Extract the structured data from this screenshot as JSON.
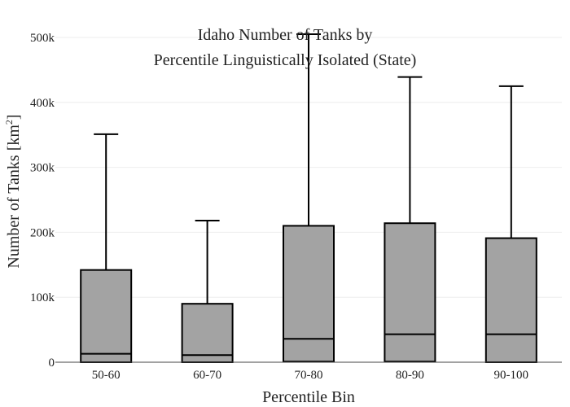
{
  "chart_data": {
    "type": "box",
    "title_lines": [
      "Idaho Number of Tanks by",
      "Percentile Linguistically Isolated (State)"
    ],
    "xlabel": "Percentile Bin",
    "ylabel_main": "Number of Tanks  [km",
    "ylabel_sup": "2",
    "ylabel_end": "]",
    "ylim": [
      0,
      510000
    ],
    "y_ticks": [
      0,
      100000,
      200000,
      300000,
      400000,
      500000
    ],
    "y_tick_labels": [
      "0",
      "100k",
      "200k",
      "300k",
      "400k",
      "500k"
    ],
    "grid": true,
    "categories": [
      "50-60",
      "60-70",
      "70-80",
      "80-90",
      "90-100"
    ],
    "boxes": [
      {
        "min": 0,
        "q1": 0,
        "median": 13000,
        "q3": 142000,
        "max": 351000
      },
      {
        "min": 0,
        "q1": 0,
        "median": 11000,
        "q3": 90000,
        "max": 218000
      },
      {
        "min": 1000,
        "q1": 1000,
        "median": 36000,
        "q3": 210000,
        "max": 505000
      },
      {
        "min": 1000,
        "q1": 1000,
        "median": 43000,
        "q3": 214000,
        "max": 439000
      },
      {
        "min": 0,
        "q1": 0,
        "median": 43000,
        "q3": 191000,
        "max": 425000
      }
    ],
    "box_fill": "#a3a3a3",
    "box_stroke": "#000000",
    "grid_color": "#eeeeee"
  }
}
